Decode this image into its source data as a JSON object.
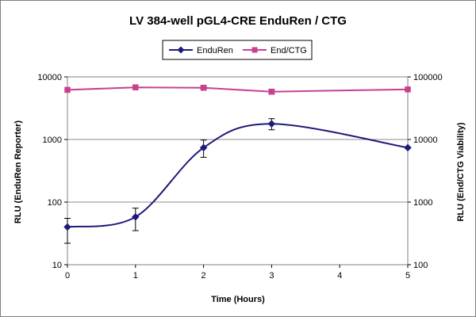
{
  "chart_data": {
    "type": "line",
    "title": "LV 384-well pGL4-CRE EnduRen / CTG",
    "xlabel": "Time (Hours)",
    "ylabel_left": "RLU (EnduRen Reporter)",
    "ylabel_right": "RLU (End/CTG Viability)",
    "x": [
      0,
      1,
      2,
      3,
      5
    ],
    "x_ticks": [
      "0",
      "1",
      "2",
      "3",
      "4",
      "5"
    ],
    "xlim": [
      0,
      5
    ],
    "y_left_scale": "log",
    "y_left_lim": [
      10,
      10000
    ],
    "y_left_ticks": [
      "10",
      "100",
      "1000",
      "10000"
    ],
    "y_right_scale": "log",
    "y_right_lim": [
      100,
      100000
    ],
    "y_right_ticks": [
      "100",
      "1000",
      "10000",
      "100000"
    ],
    "grid": "horizontal major gridlines",
    "legend_placement": "top",
    "series": [
      {
        "name": "EnduRen",
        "axis": "left",
        "color": "#1f1a7a",
        "marker": "diamond",
        "smooth": true,
        "values": [
          40,
          58,
          740,
          1780,
          740
        ],
        "error_low": [
          22,
          35,
          520,
          1430,
          740
        ],
        "error_high": [
          55,
          80,
          980,
          2150,
          740
        ]
      },
      {
        "name": "End/CTG",
        "axis": "right",
        "color": "#c8408e",
        "marker": "square",
        "smooth": false,
        "values": [
          62000,
          68000,
          67000,
          58000,
          63000
        ],
        "error_low": [
          62000,
          68000,
          63000,
          53000,
          63000
        ],
        "error_high": [
          62000,
          68000,
          70000,
          63000,
          63000
        ]
      }
    ]
  }
}
